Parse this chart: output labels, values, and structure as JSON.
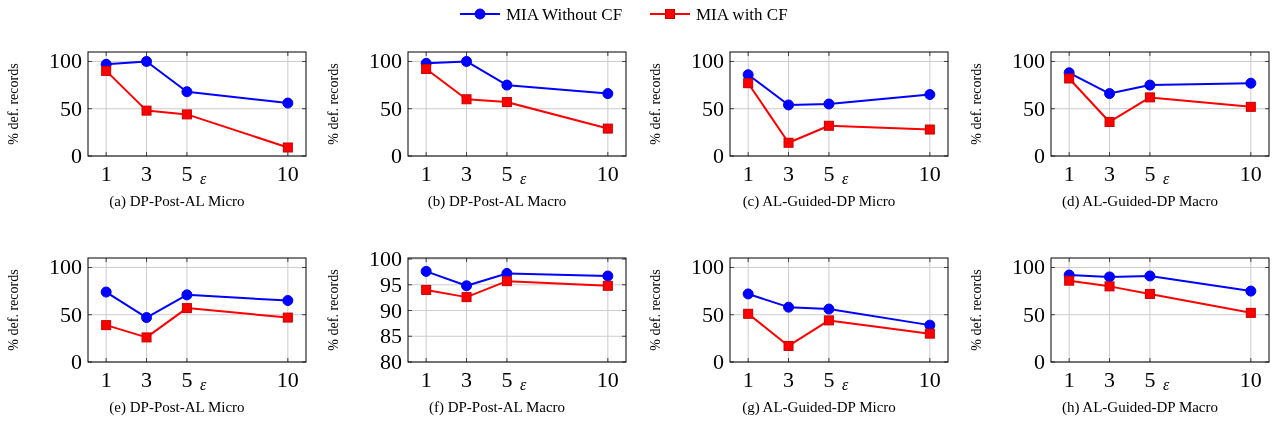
{
  "chart_data": [
    {
      "type": "line",
      "title": "(a) DP-Post-AL Micro",
      "xlabel": "ε",
      "ylabel": "% def. records",
      "x": [
        1,
        3,
        5,
        10
      ],
      "xlim": [
        0.1,
        10.9
      ],
      "xticks": [
        1,
        3,
        5,
        10
      ],
      "ylim": [
        0,
        110
      ],
      "yticks": [
        0,
        50,
        100
      ],
      "grid": true,
      "legend": "top",
      "series": [
        {
          "name": "MIA Without CF",
          "color": "#0000ff",
          "marker": "circle",
          "values": [
            97,
            100,
            68,
            56
          ]
        },
        {
          "name": "MIA with CF",
          "color": "#ff0000",
          "marker": "square",
          "values": [
            90,
            48,
            44,
            9
          ]
        }
      ]
    },
    {
      "type": "line",
      "title": "(b) DP-Post-AL Macro",
      "xlabel": "ε",
      "ylabel": "% def. records",
      "x": [
        1,
        3,
        5,
        10
      ],
      "xlim": [
        0.1,
        10.9
      ],
      "xticks": [
        1,
        3,
        5,
        10
      ],
      "ylim": [
        0,
        110
      ],
      "yticks": [
        0,
        50,
        100
      ],
      "grid": true,
      "series": [
        {
          "color": "#0000ff",
          "marker": "circle",
          "values": [
            98,
            100,
            75,
            66
          ]
        },
        {
          "color": "#ff0000",
          "marker": "square",
          "values": [
            92,
            60,
            57,
            29
          ]
        }
      ]
    },
    {
      "type": "line",
      "title": "(c) AL-Guided-DP Micro",
      "xlabel": "ε",
      "ylabel": "% def. records",
      "x": [
        1,
        3,
        5,
        10
      ],
      "xlim": [
        0.1,
        10.9
      ],
      "xticks": [
        1,
        3,
        5,
        10
      ],
      "ylim": [
        0,
        110
      ],
      "yticks": [
        0,
        50,
        100
      ],
      "grid": true,
      "series": [
        {
          "color": "#0000ff",
          "marker": "circle",
          "values": [
            86,
            54,
            55,
            65
          ]
        },
        {
          "color": "#ff0000",
          "marker": "square",
          "values": [
            77,
            14,
            32,
            28
          ]
        }
      ]
    },
    {
      "type": "line",
      "title": "(d) AL-Guided-DP Macro",
      "xlabel": "ε",
      "ylabel": "% def. records",
      "x": [
        1,
        3,
        5,
        10
      ],
      "xlim": [
        0.1,
        10.9
      ],
      "xticks": [
        1,
        3,
        5,
        10
      ],
      "ylim": [
        0,
        110
      ],
      "yticks": [
        0,
        50,
        100
      ],
      "grid": true,
      "series": [
        {
          "color": "#0000ff",
          "marker": "circle",
          "values": [
            88,
            66,
            75,
            77
          ]
        },
        {
          "color": "#ff0000",
          "marker": "square",
          "values": [
            82,
            36,
            62,
            52
          ]
        }
      ]
    },
    {
      "type": "line",
      "title": "(e) DP-Post-AL Micro",
      "xlabel": "ε",
      "ylabel": "% def. records",
      "x": [
        1,
        3,
        5,
        10
      ],
      "xlim": [
        0.1,
        10.9
      ],
      "xticks": [
        1,
        3,
        5,
        10
      ],
      "ylim": [
        0,
        110
      ],
      "yticks": [
        0,
        50,
        100
      ],
      "grid": true,
      "series": [
        {
          "color": "#0000ff",
          "marker": "circle",
          "values": [
            74,
            47,
            71,
            65
          ]
        },
        {
          "color": "#ff0000",
          "marker": "square",
          "values": [
            39,
            26,
            57,
            47
          ]
        }
      ]
    },
    {
      "type": "line",
      "title": "(f) DP-Post-AL Macro",
      "xlabel": "ε",
      "ylabel": "% def. records",
      "x": [
        1,
        3,
        5,
        10
      ],
      "xlim": [
        0.1,
        10.9
      ],
      "xticks": [
        1,
        3,
        5,
        10
      ],
      "ylim": [
        80,
        100.2
      ],
      "yticks": [
        80,
        85,
        90,
        95,
        100
      ],
      "grid": true,
      "series": [
        {
          "color": "#0000ff",
          "marker": "circle",
          "values": [
            97.6,
            94.8,
            97.2,
            96.7
          ]
        },
        {
          "color": "#ff0000",
          "marker": "square",
          "values": [
            94,
            92.6,
            95.7,
            94.8
          ]
        }
      ]
    },
    {
      "type": "line",
      "title": "(g) AL-Guided-DP Micro",
      "xlabel": "ε",
      "ylabel": "% def. records",
      "x": [
        1,
        3,
        5,
        10
      ],
      "xlim": [
        0.1,
        10.9
      ],
      "xticks": [
        1,
        3,
        5,
        10
      ],
      "ylim": [
        0,
        110
      ],
      "yticks": [
        0,
        50,
        100
      ],
      "grid": true,
      "series": [
        {
          "color": "#0000ff",
          "marker": "circle",
          "values": [
            72,
            58,
            56,
            39
          ]
        },
        {
          "color": "#ff0000",
          "marker": "square",
          "values": [
            51,
            17,
            44,
            30
          ]
        }
      ]
    },
    {
      "type": "line",
      "title": "(h) AL-Guided-DP Macro",
      "xlabel": "ε",
      "ylabel": "% def. records",
      "x": [
        1,
        3,
        5,
        10
      ],
      "xlim": [
        0.1,
        10.9
      ],
      "xticks": [
        1,
        3,
        5,
        10
      ],
      "ylim": [
        0,
        110
      ],
      "yticks": [
        0,
        50,
        100
      ],
      "grid": true,
      "series": [
        {
          "color": "#0000ff",
          "marker": "circle",
          "values": [
            92,
            90,
            91,
            75
          ]
        },
        {
          "color": "#ff0000",
          "marker": "square",
          "values": [
            86,
            80,
            72,
            52
          ]
        }
      ]
    }
  ]
}
